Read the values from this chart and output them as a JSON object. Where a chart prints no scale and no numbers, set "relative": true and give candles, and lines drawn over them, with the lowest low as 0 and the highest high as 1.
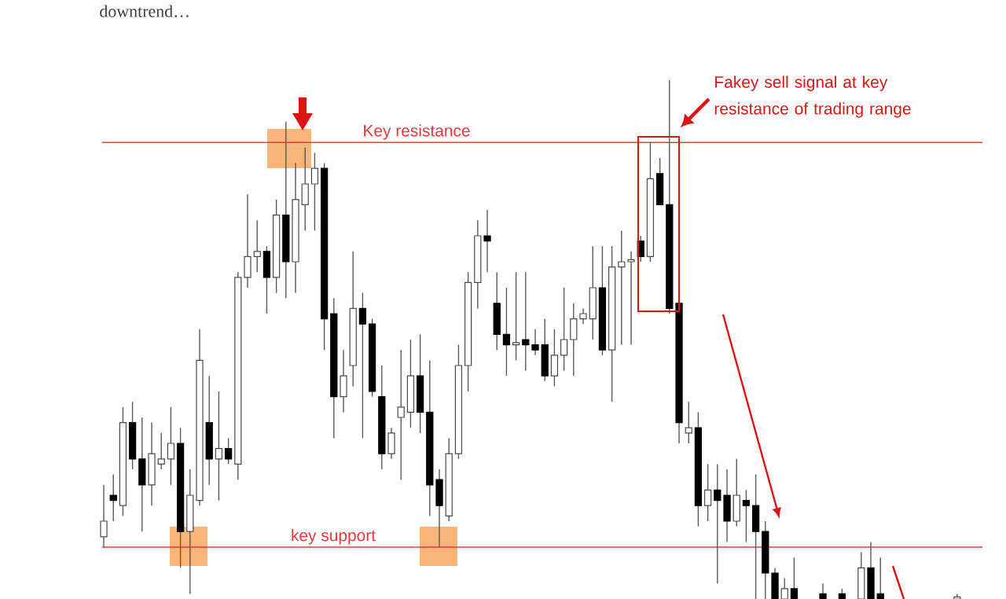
{
  "chart_data": {
    "type": "candlestick",
    "relative": true,
    "categories": [
      null,
      null,
      null,
      null,
      null,
      null,
      null,
      null,
      null,
      null,
      null,
      null,
      null,
      null,
      null,
      null,
      null,
      null,
      null,
      null,
      null,
      null,
      null,
      null,
      null,
      null,
      null,
      null,
      null,
      null,
      null,
      null,
      null,
      null,
      null,
      null,
      null,
      null,
      null,
      null,
      null,
      null,
      null,
      null,
      null,
      null,
      null,
      null,
      null,
      null,
      null,
      null,
      null,
      null,
      null,
      null,
      null,
      null,
      null,
      null,
      null,
      null,
      null,
      null,
      null,
      null,
      null,
      null,
      null,
      null,
      null,
      null,
      null,
      null,
      null,
      null,
      null,
      null,
      null,
      null,
      null,
      null,
      null,
      null,
      null,
      null,
      null,
      null,
      null,
      null
    ],
    "ohlc": [
      [
        0.12,
        0.22,
        0.1,
        0.15
      ],
      [
        0.2,
        0.24,
        0.15,
        0.19
      ],
      [
        0.18,
        0.37,
        0.16,
        0.34
      ],
      [
        0.34,
        0.38,
        0.25,
        0.27
      ],
      [
        0.27,
        0.35,
        0.13,
        0.22
      ],
      [
        0.22,
        0.34,
        0.18,
        0.28
      ],
      [
        0.26,
        0.32,
        0.25,
        0.27
      ],
      [
        0.27,
        0.37,
        0.22,
        0.3
      ],
      [
        0.3,
        0.33,
        0.06,
        0.13
      ],
      [
        0.13,
        0.25,
        0.01,
        0.2
      ],
      [
        0.19,
        0.52,
        0.18,
        0.46
      ],
      [
        0.34,
        0.43,
        0.22,
        0.27
      ],
      [
        0.27,
        0.4,
        0.19,
        0.29
      ],
      [
        0.29,
        0.31,
        0.26,
        0.27
      ],
      [
        0.26,
        0.63,
        0.23,
        0.62
      ],
      [
        0.62,
        0.78,
        0.6,
        0.66
      ],
      [
        0.66,
        0.73,
        0.63,
        0.67
      ],
      [
        0.67,
        0.68,
        0.55,
        0.62
      ],
      [
        0.62,
        0.77,
        0.59,
        0.74
      ],
      [
        0.74,
        0.92,
        0.58,
        0.65
      ],
      [
        0.65,
        0.84,
        0.59,
        0.77
      ],
      [
        0.76,
        0.87,
        0.71,
        0.8
      ],
      [
        0.8,
        0.86,
        0.71,
        0.83
      ],
      [
        0.83,
        0.84,
        0.48,
        0.54
      ],
      [
        0.55,
        0.58,
        0.31,
        0.39
      ],
      [
        0.39,
        0.48,
        0.36,
        0.43
      ],
      [
        0.45,
        0.67,
        0.41,
        0.56
      ],
      [
        0.56,
        0.59,
        0.31,
        0.53
      ],
      [
        0.53,
        0.54,
        0.39,
        0.4
      ],
      [
        0.39,
        0.45,
        0.25,
        0.28
      ],
      [
        0.28,
        0.33,
        0.27,
        0.32
      ],
      [
        0.35,
        0.48,
        0.23,
        0.37
      ],
      [
        0.36,
        0.5,
        0.33,
        0.43
      ],
      [
        0.43,
        0.51,
        0.32,
        0.36
      ],
      [
        0.36,
        0.46,
        0.16,
        0.22
      ],
      [
        0.23,
        0.25,
        0.1,
        0.18
      ],
      [
        0.16,
        0.31,
        0.15,
        0.28
      ],
      [
        0.28,
        0.49,
        0.27,
        0.45
      ],
      [
        0.45,
        0.63,
        0.4,
        0.61
      ],
      [
        0.61,
        0.73,
        0.56,
        0.7
      ],
      [
        0.7,
        0.75,
        0.63,
        0.69
      ],
      [
        0.57,
        0.63,
        0.48,
        0.51
      ],
      [
        0.51,
        0.6,
        0.43,
        0.49
      ],
      [
        0.49,
        0.63,
        0.46,
        0.49
      ],
      [
        0.5,
        0.63,
        0.44,
        0.49
      ],
      [
        0.49,
        0.52,
        0.47,
        0.48
      ],
      [
        0.49,
        0.54,
        0.42,
        0.43
      ],
      [
        0.43,
        0.52,
        0.41,
        0.47
      ],
      [
        0.47,
        0.6,
        0.44,
        0.5
      ],
      [
        0.5,
        0.57,
        0.43,
        0.54
      ],
      [
        0.54,
        0.56,
        0.53,
        0.55
      ],
      [
        0.54,
        0.68,
        0.5,
        0.6
      ],
      [
        0.6,
        0.68,
        0.47,
        0.48
      ],
      [
        0.48,
        0.68,
        0.38,
        0.64
      ],
      [
        0.64,
        0.71,
        0.49,
        0.65
      ],
      [
        0.65,
        0.67,
        0.49,
        0.65
      ],
      [
        0.69,
        0.7,
        0.65,
        0.66
      ],
      [
        0.66,
        0.88,
        0.65,
        0.81
      ],
      [
        0.82,
        0.85,
        0.76,
        0.76
      ],
      [
        0.76,
        1,
        0.55,
        0.56
      ],
      [
        0.57,
        0.58,
        0.3,
        0.34
      ],
      [
        0.32,
        0.38,
        0.3,
        0.33
      ],
      [
        0.33,
        0.36,
        0.14,
        0.18
      ],
      [
        0.18,
        0.26,
        0.15,
        0.21
      ],
      [
        0.21,
        0.26,
        0.03,
        0.19
      ],
      [
        0.2,
        0.25,
        0.11,
        0.15
      ],
      [
        0.15,
        0.27,
        0.14,
        0.2
      ],
      [
        0.19,
        0.21,
        0.11,
        0.18
      ],
      [
        0.18,
        0.24,
        0,
        0.13
      ],
      [
        0.13,
        0.15,
        0,
        0.05
      ],
      [
        0.05,
        0.06,
        0,
        0
      ],
      [
        0,
        0.04,
        0,
        0.02
      ],
      [
        0.02,
        0.08,
        0,
        0
      ],
      null,
      null,
      [
        0.01,
        0.03,
        0,
        0
      ],
      null,
      [
        0.01,
        0.02,
        0,
        0
      ],
      null,
      [
        0,
        0.09,
        0,
        0.06
      ],
      [
        0.06,
        0.11,
        0,
        0
      ],
      [
        0.01,
        0.08,
        0,
        0
      ],
      null,
      null,
      null,
      null,
      null,
      null,
      null,
      [
        0,
        0.01,
        0,
        0
      ]
    ],
    "ref_lines": [
      {
        "axis": "y",
        "value": 0.88,
        "label": "Key resistance",
        "color": "#e83a3a"
      },
      {
        "axis": "y",
        "value": 0.1,
        "label": "key support",
        "color": "#e83a3a"
      }
    ],
    "annotations": [
      "downtrend…",
      "Fakey sell signal at key resistance of trading range"
    ]
  }
}
